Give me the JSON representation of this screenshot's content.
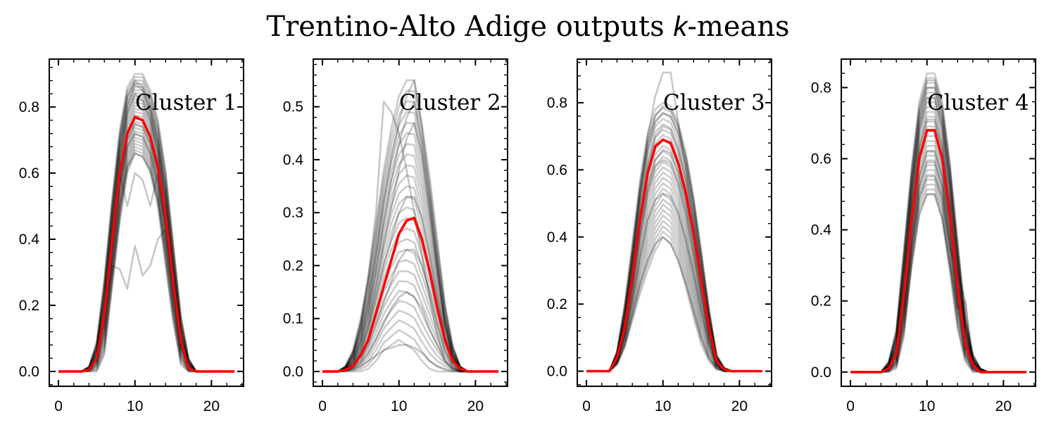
{
  "figure": {
    "title": "Trentino-Alto Adige outputs ",
    "title_k": "k",
    "title_suffix": "-means",
    "trace_color": "#000000",
    "mean_color": "#ff0000",
    "minor_ticks": true,
    "grid": false
  },
  "chart_data": [
    {
      "type": "line",
      "label": "Cluster 1",
      "xlim": [
        -1.2,
        24.2
      ],
      "ylim": [
        -0.045,
        0.945
      ],
      "xticks": [
        0,
        10,
        20
      ],
      "xtick_labels": [
        "0",
        "10",
        "20"
      ],
      "yticks": [
        0.0,
        0.2,
        0.4,
        0.6,
        0.8
      ],
      "ytick_labels": [
        "0.0",
        "0.2",
        "0.4",
        "0.6",
        "0.8"
      ],
      "x": [
        0,
        1,
        2,
        3,
        4,
        5,
        6,
        7,
        8,
        9,
        10,
        11,
        12,
        13,
        14,
        15,
        16,
        17,
        18,
        19,
        20,
        21,
        22,
        23
      ],
      "mean": [
        0,
        0,
        0,
        0,
        0.005,
        0.04,
        0.17,
        0.39,
        0.6,
        0.72,
        0.77,
        0.76,
        0.71,
        0.62,
        0.47,
        0.27,
        0.09,
        0.01,
        0,
        0,
        0,
        0,
        0,
        0
      ],
      "band_lower": [
        0,
        0,
        0,
        0,
        0,
        0,
        0.05,
        0.25,
        0.45,
        0.6,
        0.66,
        0.65,
        0.6,
        0.5,
        0.32,
        0.15,
        0.02,
        0,
        0,
        0,
        0,
        0,
        0,
        0
      ],
      "band_upper": [
        0,
        0,
        0,
        0,
        0.015,
        0.09,
        0.28,
        0.52,
        0.73,
        0.86,
        0.9,
        0.9,
        0.85,
        0.76,
        0.61,
        0.39,
        0.17,
        0.04,
        0,
        0,
        0,
        0,
        0,
        0
      ],
      "traces": [
        [
          0,
          0,
          0,
          0,
          0.005,
          0.05,
          0.2,
          0.42,
          0.64,
          0.78,
          0.84,
          0.82,
          0.76,
          0.66,
          0.51,
          0.3,
          0.1,
          0.01,
          0,
          0,
          0,
          0,
          0,
          0
        ],
        [
          0,
          0,
          0,
          0,
          0.003,
          0.03,
          0.15,
          0.35,
          0.56,
          0.68,
          0.72,
          0.71,
          0.66,
          0.57,
          0.43,
          0.24,
          0.07,
          0.01,
          0,
          0,
          0,
          0,
          0,
          0
        ],
        [
          0,
          0,
          0,
          0,
          0.01,
          0.07,
          0.25,
          0.48,
          0.7,
          0.83,
          0.88,
          0.86,
          0.8,
          0.7,
          0.55,
          0.33,
          0.13,
          0.02,
          0,
          0,
          0,
          0,
          0,
          0
        ],
        [
          0,
          0,
          0,
          0,
          0.002,
          0.02,
          0.12,
          0.3,
          0.5,
          0.62,
          0.66,
          0.65,
          0.61,
          0.52,
          0.38,
          0.2,
          0.05,
          0,
          0,
          0,
          0,
          0,
          0,
          0
        ],
        [
          0,
          0,
          0,
          0,
          0.005,
          0.06,
          0.22,
          0.45,
          0.67,
          0.8,
          0.87,
          0.85,
          0.78,
          0.68,
          0.53,
          0.32,
          0.11,
          0.01,
          0,
          0,
          0,
          0,
          0,
          0
        ],
        [
          0,
          0,
          0,
          0,
          0.004,
          0.04,
          0.16,
          0.36,
          0.57,
          0.7,
          0.75,
          0.74,
          0.69,
          0.6,
          0.45,
          0.25,
          0.08,
          0.01,
          0,
          0,
          0,
          0,
          0,
          0
        ],
        [
          0,
          0,
          0,
          0,
          0.004,
          0.04,
          0.17,
          0.32,
          0.31,
          0.25,
          0.38,
          0.29,
          0.32,
          0.4,
          0.43,
          0.25,
          0.08,
          0.01,
          0,
          0,
          0,
          0,
          0,
          0
        ],
        [
          0,
          0,
          0,
          0,
          0.004,
          0.04,
          0.17,
          0.38,
          0.6,
          0.5,
          0.6,
          0.58,
          0.5,
          0.6,
          0.45,
          0.25,
          0.08,
          0.01,
          0,
          0,
          0,
          0,
          0,
          0
        ]
      ]
    },
    {
      "type": "line",
      "label": "Cluster 2",
      "xlim": [
        -1.2,
        24.2
      ],
      "ylim": [
        -0.028,
        0.59
      ],
      "xticks": [
        0,
        10,
        20
      ],
      "xtick_labels": [
        "0",
        "10",
        "20"
      ],
      "yticks": [
        0.0,
        0.1,
        0.2,
        0.3,
        0.4,
        0.5
      ],
      "ytick_labels": [
        "0.0",
        "0.1",
        "0.2",
        "0.3",
        "0.4",
        "0.5"
      ],
      "x": [
        0,
        1,
        2,
        3,
        4,
        5,
        6,
        7,
        8,
        9,
        10,
        11,
        12,
        13,
        14,
        15,
        16,
        17,
        18,
        19,
        20,
        21,
        22,
        23
      ],
      "mean": [
        0,
        0,
        0,
        0.003,
        0.01,
        0.03,
        0.06,
        0.11,
        0.16,
        0.21,
        0.26,
        0.285,
        0.29,
        0.25,
        0.19,
        0.12,
        0.06,
        0.02,
        0.005,
        0,
        0,
        0,
        0,
        0
      ],
      "band_lower": [
        0,
        0,
        0,
        0,
        0,
        0,
        0.005,
        0.02,
        0.04,
        0.05,
        0.06,
        0.05,
        0.04,
        0.02,
        0.005,
        0,
        0,
        0,
        0,
        0,
        0,
        0,
        0,
        0
      ],
      "band_upper": [
        0,
        0,
        0,
        0.01,
        0.04,
        0.1,
        0.18,
        0.28,
        0.38,
        0.46,
        0.52,
        0.55,
        0.55,
        0.47,
        0.37,
        0.25,
        0.13,
        0.05,
        0.01,
        0,
        0,
        0,
        0,
        0
      ],
      "traces": [
        [
          0,
          0,
          0,
          0.005,
          0.02,
          0.06,
          0.13,
          0.22,
          0.32,
          0.4,
          0.47,
          0.52,
          0.55,
          0.46,
          0.34,
          0.21,
          0.1,
          0.03,
          0.005,
          0,
          0,
          0,
          0,
          0
        ],
        [
          0,
          0,
          0,
          0.002,
          0.008,
          0.02,
          0.05,
          0.09,
          0.13,
          0.17,
          0.21,
          0.23,
          0.23,
          0.2,
          0.15,
          0.09,
          0.04,
          0.01,
          0,
          0,
          0,
          0,
          0,
          0
        ],
        [
          0,
          0,
          0,
          0.005,
          0.03,
          0.08,
          0.18,
          0.3,
          0.51,
          0.49,
          0.45,
          0.38,
          0.3,
          0.22,
          0.14,
          0.07,
          0.02,
          0.005,
          0,
          0,
          0,
          0,
          0,
          0
        ],
        [
          0,
          0,
          0,
          0.001,
          0.004,
          0.01,
          0.02,
          0.03,
          0.04,
          0.045,
          0.05,
          0.05,
          0.045,
          0.035,
          0.02,
          0.01,
          0.003,
          0,
          0,
          0,
          0,
          0,
          0,
          0
        ],
        [
          0,
          0,
          0,
          0.003,
          0.01,
          0.04,
          0.09,
          0.16,
          0.24,
          0.31,
          0.38,
          0.44,
          0.47,
          0.41,
          0.3,
          0.19,
          0.09,
          0.03,
          0.005,
          0,
          0,
          0,
          0,
          0
        ],
        [
          0,
          0,
          0,
          0.002,
          0.006,
          0.015,
          0.035,
          0.06,
          0.09,
          0.12,
          0.14,
          0.15,
          0.14,
          0.12,
          0.08,
          0.05,
          0.02,
          0.005,
          0,
          0,
          0,
          0,
          0,
          0
        ],
        [
          0,
          0,
          0,
          0.004,
          0.015,
          0.05,
          0.11,
          0.19,
          0.28,
          0.36,
          0.43,
          0.48,
          0.51,
          0.43,
          0.32,
          0.2,
          0.09,
          0.03,
          0.005,
          0,
          0,
          0,
          0,
          0
        ],
        [
          0,
          0,
          0,
          0.003,
          0.012,
          0.035,
          0.08,
          0.14,
          0.2,
          0.25,
          0.3,
          0.33,
          0.33,
          0.29,
          0.22,
          0.14,
          0.07,
          0.02,
          0.005,
          0,
          0,
          0,
          0,
          0
        ]
      ]
    },
    {
      "type": "line",
      "label": "Cluster 3",
      "xlim": [
        -1.2,
        24.2
      ],
      "ylim": [
        -0.045,
        0.93
      ],
      "xticks": [
        0,
        10,
        20
      ],
      "xtick_labels": [
        "0",
        "10",
        "20"
      ],
      "yticks": [
        0.0,
        0.2,
        0.4,
        0.6,
        0.8
      ],
      "ytick_labels": [
        "0.0",
        "0.2",
        "0.4",
        "0.6",
        "0.8"
      ],
      "x": [
        0,
        1,
        2,
        3,
        4,
        5,
        6,
        7,
        8,
        9,
        10,
        11,
        12,
        13,
        14,
        15,
        16,
        17,
        18,
        19,
        20,
        21,
        22,
        23
      ],
      "mean": [
        0,
        0,
        0,
        0,
        0.04,
        0.13,
        0.28,
        0.45,
        0.59,
        0.67,
        0.69,
        0.68,
        0.62,
        0.53,
        0.41,
        0.27,
        0.13,
        0.03,
        0.005,
        0,
        0,
        0,
        0,
        0
      ],
      "band_lower": [
        0,
        0,
        0,
        0,
        0.02,
        0.07,
        0.15,
        0.23,
        0.3,
        0.36,
        0.4,
        0.38,
        0.33,
        0.25,
        0.16,
        0.08,
        0.03,
        0.005,
        0,
        0,
        0,
        0,
        0,
        0
      ],
      "band_upper": [
        0,
        0,
        0,
        0,
        0.06,
        0.2,
        0.38,
        0.57,
        0.71,
        0.78,
        0.8,
        0.79,
        0.74,
        0.65,
        0.52,
        0.36,
        0.19,
        0.05,
        0.01,
        0,
        0,
        0,
        0,
        0
      ],
      "traces": [
        [
          0,
          0,
          0,
          0,
          0.05,
          0.16,
          0.33,
          0.51,
          0.66,
          0.74,
          0.77,
          0.76,
          0.71,
          0.62,
          0.49,
          0.33,
          0.17,
          0.04,
          0.005,
          0,
          0,
          0,
          0,
          0
        ],
        [
          0,
          0,
          0,
          0,
          0.03,
          0.11,
          0.24,
          0.4,
          0.53,
          0.61,
          0.63,
          0.62,
          0.56,
          0.47,
          0.35,
          0.22,
          0.1,
          0.02,
          0,
          0,
          0,
          0,
          0,
          0
        ],
        [
          0,
          0,
          0,
          0,
          0.04,
          0.14,
          0.32,
          0.53,
          0.7,
          0.82,
          0.89,
          0.89,
          0.74,
          0.6,
          0.46,
          0.3,
          0.15,
          0.03,
          0.005,
          0,
          0,
          0,
          0,
          0
        ],
        [
          0,
          0,
          0,
          0,
          0.02,
          0.08,
          0.17,
          0.26,
          0.33,
          0.38,
          0.4,
          0.38,
          0.33,
          0.26,
          0.18,
          0.1,
          0.04,
          0.01,
          0,
          0,
          0,
          0,
          0,
          0
        ],
        [
          0,
          0,
          0,
          0,
          0.04,
          0.14,
          0.3,
          0.47,
          0.61,
          0.7,
          0.73,
          0.72,
          0.66,
          0.57,
          0.44,
          0.29,
          0.14,
          0.03,
          0.005,
          0,
          0,
          0,
          0,
          0
        ],
        [
          0,
          0,
          0,
          0,
          0.03,
          0.1,
          0.21,
          0.34,
          0.45,
          0.51,
          0.53,
          0.52,
          0.47,
          0.39,
          0.29,
          0.18,
          0.08,
          0.02,
          0,
          0,
          0,
          0,
          0,
          0
        ],
        [
          0,
          0,
          0,
          0,
          0.05,
          0.17,
          0.35,
          0.54,
          0.68,
          0.76,
          0.79,
          0.78,
          0.73,
          0.64,
          0.51,
          0.35,
          0.18,
          0.04,
          0.01,
          0,
          0,
          0,
          0,
          0
        ],
        [
          0,
          0,
          0,
          0,
          0.03,
          0.12,
          0.26,
          0.42,
          0.55,
          0.63,
          0.66,
          0.65,
          0.59,
          0.5,
          0.38,
          0.24,
          0.11,
          0.02,
          0,
          0,
          0,
          0,
          0,
          0
        ]
      ]
    },
    {
      "type": "line",
      "label": "Cluster 4",
      "xlim": [
        -1.2,
        24.2
      ],
      "ylim": [
        -0.04,
        0.88
      ],
      "xticks": [
        0,
        10,
        20
      ],
      "xtick_labels": [
        "0",
        "10",
        "20"
      ],
      "yticks": [
        0.0,
        0.2,
        0.4,
        0.6,
        0.8
      ],
      "ytick_labels": [
        "0.0",
        "0.2",
        "0.4",
        "0.6",
        "0.8"
      ],
      "x": [
        0,
        1,
        2,
        3,
        4,
        5,
        6,
        7,
        8,
        9,
        10,
        11,
        12,
        13,
        14,
        15,
        16,
        17,
        18,
        19,
        20,
        21,
        22,
        23
      ],
      "mean": [
        0,
        0,
        0,
        0,
        0,
        0.01,
        0.05,
        0.22,
        0.43,
        0.6,
        0.68,
        0.68,
        0.6,
        0.44,
        0.24,
        0.08,
        0.02,
        0,
        0,
        0,
        0,
        0,
        0,
        0
      ],
      "band_lower": [
        0,
        0,
        0,
        0,
        0,
        0,
        0.01,
        0.1,
        0.3,
        0.45,
        0.5,
        0.5,
        0.43,
        0.28,
        0.12,
        0.03,
        0,
        0,
        0,
        0,
        0,
        0,
        0,
        0
      ],
      "band_upper": [
        0,
        0,
        0,
        0,
        0,
        0.03,
        0.12,
        0.35,
        0.58,
        0.76,
        0.84,
        0.84,
        0.76,
        0.59,
        0.37,
        0.16,
        0.05,
        0.01,
        0,
        0,
        0,
        0,
        0,
        0
      ],
      "traces": [
        [
          0,
          0,
          0,
          0,
          0,
          0.015,
          0.07,
          0.27,
          0.5,
          0.68,
          0.77,
          0.77,
          0.69,
          0.52,
          0.3,
          0.11,
          0.03,
          0,
          0,
          0,
          0,
          0,
          0,
          0
        ],
        [
          0,
          0,
          0,
          0,
          0,
          0.005,
          0.03,
          0.17,
          0.36,
          0.52,
          0.59,
          0.59,
          0.52,
          0.37,
          0.19,
          0.05,
          0.01,
          0,
          0,
          0,
          0,
          0,
          0,
          0
        ],
        [
          0,
          0,
          0,
          0,
          0,
          0.02,
          0.1,
          0.32,
          0.55,
          0.73,
          0.82,
          0.82,
          0.74,
          0.57,
          0.34,
          0.14,
          0.04,
          0,
          0,
          0,
          0,
          0,
          0,
          0
        ],
        [
          0,
          0,
          0,
          0,
          0,
          0.005,
          0.02,
          0.13,
          0.3,
          0.44,
          0.5,
          0.5,
          0.43,
          0.3,
          0.18,
          0.2,
          0.02,
          0,
          0,
          0,
          0,
          0,
          0,
          0
        ],
        [
          0,
          0,
          0,
          0,
          0,
          0.01,
          0.06,
          0.24,
          0.46,
          0.63,
          0.71,
          0.71,
          0.63,
          0.47,
          0.26,
          0.09,
          0.02,
          0,
          0,
          0,
          0,
          0,
          0,
          0
        ],
        [
          0,
          0,
          0,
          0,
          0,
          0.008,
          0.04,
          0.19,
          0.39,
          0.55,
          0.62,
          0.62,
          0.55,
          0.4,
          0.21,
          0.06,
          0.01,
          0,
          0,
          0,
          0,
          0,
          0,
          0
        ],
        [
          0,
          0,
          0,
          0,
          0,
          0.015,
          0.08,
          0.29,
          0.52,
          0.7,
          0.8,
          0.8,
          0.71,
          0.54,
          0.32,
          0.12,
          0.03,
          0,
          0,
          0,
          0,
          0,
          0,
          0
        ],
        [
          0,
          0,
          0,
          0,
          0,
          0.006,
          0.03,
          0.16,
          0.34,
          0.49,
          0.55,
          0.55,
          0.49,
          0.35,
          0.28,
          0.2,
          0.03,
          0,
          0,
          0,
          0,
          0,
          0,
          0
        ]
      ]
    }
  ]
}
